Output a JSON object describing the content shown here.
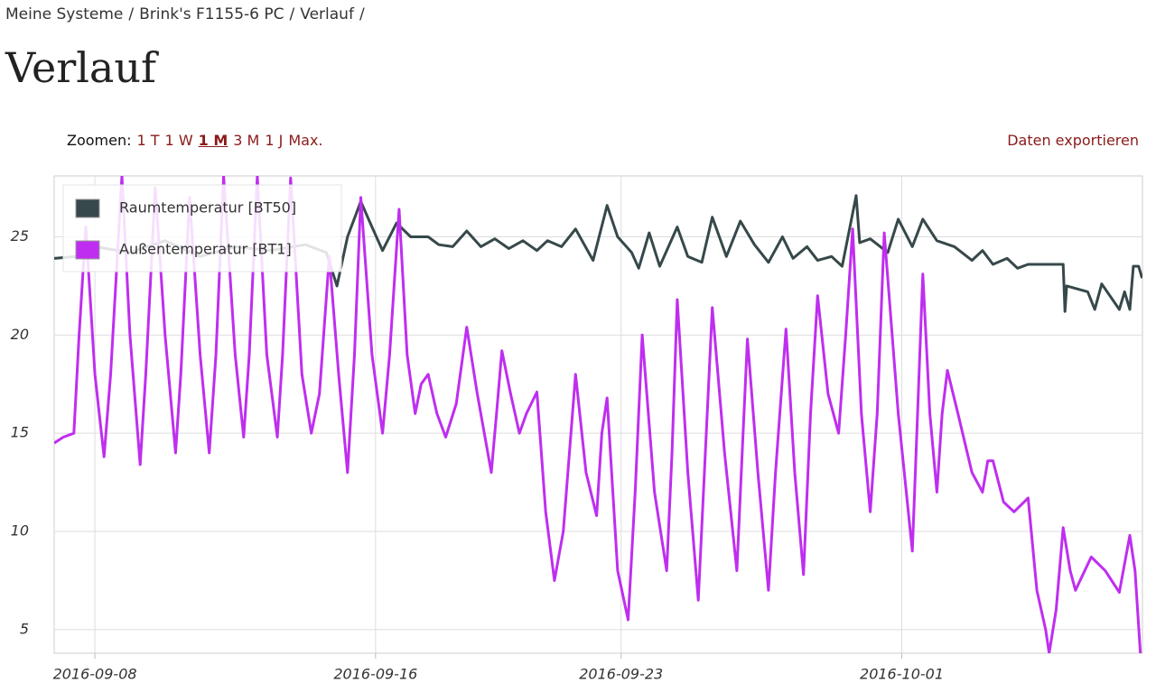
{
  "breadcrumb": {
    "items": [
      "Meine Systeme",
      "Brink's F1155-6 PC",
      "Verlauf"
    ],
    "separator": "/"
  },
  "heading": "Verlauf",
  "zoom": {
    "label": "Zoomen:",
    "options": [
      "1 T",
      "1 W",
      "1 M",
      "3 M",
      "1 J",
      "Max."
    ],
    "active": 2
  },
  "export": "Daten exportieren",
  "chart_data": {
    "type": "line",
    "xlim": [
      -1.16,
      29.86
    ],
    "xticks": [
      {
        "value": 0,
        "label": "2016-09-08"
      },
      {
        "value": 8,
        "label": "2016-09-16"
      },
      {
        "value": 15,
        "label": "2016-09-23"
      },
      {
        "value": 23,
        "label": "2016-10-01"
      }
    ],
    "ylim": [
      3.8,
      28.1
    ],
    "yticks": [
      5,
      10,
      15,
      20,
      25
    ],
    "grid": true,
    "legend": "top-left",
    "series": [
      {
        "name": "Raumtemperatur [BT50]",
        "color": "#36484a",
        "x": [
          -1.16,
          -0.5,
          0,
          1,
          2,
          3,
          4,
          5,
          6,
          6.6,
          6.9,
          7.2,
          7.58,
          7.9,
          8.2,
          8.6,
          9.0,
          9.5,
          9.8,
          10.2,
          10.6,
          11,
          11.4,
          11.8,
          12.2,
          12.6,
          12.9,
          13.3,
          13.7,
          14.2,
          14.6,
          14.9,
          15.3,
          15.5,
          15.8,
          16.1,
          16.6,
          16.9,
          17.3,
          17.6,
          18,
          18.4,
          18.8,
          19.2,
          19.6,
          19.9,
          20.3,
          20.6,
          21,
          21.3,
          21.7,
          21.8,
          22.1,
          22.6,
          22.9,
          23.3,
          23.6,
          24,
          24.5,
          25,
          25.3,
          25.6,
          26,
          26.3,
          26.6,
          27.1,
          27.6,
          27.65,
          27.7,
          28.3,
          28.5,
          28.7,
          29.2,
          29.35,
          29.5,
          29.6,
          29.75,
          29.85
        ],
        "values": [
          23.9,
          24,
          24.5,
          24.2,
          24.8,
          24,
          24.5,
          24.3,
          24.6,
          24.2,
          22.5,
          25,
          26.8,
          25.5,
          24.3,
          25.7,
          25,
          25,
          24.6,
          24.5,
          25.3,
          24.5,
          24.9,
          24.4,
          24.8,
          24.3,
          24.8,
          24.5,
          25.4,
          23.8,
          26.6,
          25,
          24.2,
          23.4,
          25.2,
          23.5,
          25.5,
          24,
          23.7,
          26,
          24,
          25.8,
          24.6,
          23.7,
          25,
          23.9,
          24.5,
          23.8,
          24,
          23.5,
          27.1,
          24.7,
          24.9,
          24.2,
          25.9,
          24.5,
          25.9,
          24.8,
          24.5,
          23.8,
          24.3,
          23.6,
          23.9,
          23.4,
          23.6,
          23.6,
          23.6,
          21.2,
          22.5,
          22.2,
          21.3,
          22.6,
          21.3,
          22.2,
          21.3,
          23.5,
          23.5,
          22.9
        ]
      },
      {
        "name": "Außentemperatur [BT1]",
        "color": "#bf2ef0",
        "x": [
          -1.16,
          -0.9,
          -0.6,
          -0.45,
          -0.26,
          0.0,
          0.26,
          0.45,
          0.77,
          1.0,
          1.29,
          1.45,
          1.72,
          2.0,
          2.3,
          2.45,
          2.7,
          3.0,
          3.26,
          3.45,
          3.67,
          4.0,
          4.24,
          4.4,
          4.63,
          4.9,
          5.2,
          5.35,
          5.58,
          5.9,
          6.17,
          6.4,
          6.68,
          6.95,
          7.2,
          7.4,
          7.58,
          7.9,
          8.2,
          8.4,
          8.67,
          8.9,
          9.13,
          9.3,
          9.5,
          9.75,
          10.0,
          10.3,
          10.6,
          10.9,
          11.3,
          11.45,
          11.6,
          11.85,
          12.1,
          12.3,
          12.6,
          12.85,
          13.1,
          13.35,
          13.7,
          14.0,
          14.3,
          14.45,
          14.6,
          14.9,
          15.2,
          15.4,
          15.6,
          15.95,
          16.3,
          16.45,
          16.6,
          16.9,
          17.2,
          17.4,
          17.6,
          17.95,
          18.3,
          18.45,
          18.6,
          18.9,
          19.2,
          19.4,
          19.7,
          19.95,
          20.2,
          20.4,
          20.6,
          20.9,
          21.2,
          21.4,
          21.6,
          21.85,
          22.1,
          22.3,
          22.5,
          22.9,
          23.3,
          23.45,
          23.6,
          23.8,
          24.0,
          24.15,
          24.3,
          24.6,
          25.0,
          25.3,
          25.45,
          25.6,
          25.9,
          26.2,
          26.6,
          26.85,
          27.1,
          27.2,
          27.4,
          27.6,
          27.8,
          27.95,
          28.4,
          28.8,
          29.2,
          29.5,
          29.65,
          29.8
        ],
        "values": [
          14.5,
          14.8,
          15,
          20,
          25.5,
          18,
          13.8,
          18,
          28.1,
          20,
          13.4,
          18,
          27.5,
          20,
          14,
          18,
          27,
          19,
          14,
          19,
          28.1,
          19,
          14.8,
          19,
          28.1,
          19,
          14.8,
          19,
          28,
          18,
          15,
          17,
          24,
          18,
          13,
          19,
          27,
          19,
          15,
          19,
          26.4,
          19,
          16,
          17.5,
          18,
          16,
          14.8,
          16.5,
          20.4,
          17,
          13,
          16,
          19.2,
          17,
          15,
          16,
          17.1,
          11,
          7.5,
          10,
          18,
          13,
          10.8,
          15,
          16.8,
          8,
          5.5,
          12,
          20,
          12,
          8,
          14,
          21.8,
          13,
          6.5,
          14,
          21.4,
          14,
          8,
          14,
          19.8,
          13,
          7,
          13,
          20.3,
          13,
          7.8,
          16,
          22,
          17,
          15,
          20,
          25.4,
          16,
          11,
          16,
          25.2,
          16,
          9,
          16,
          23.1,
          16,
          12,
          16,
          18.2,
          16,
          13,
          12,
          13.6,
          13.6,
          11.5,
          11,
          11.7,
          7,
          5,
          3.8,
          6,
          10.2,
          8,
          7,
          8.7,
          8,
          6.9,
          9.8,
          8,
          3.8
        ]
      }
    ]
  }
}
